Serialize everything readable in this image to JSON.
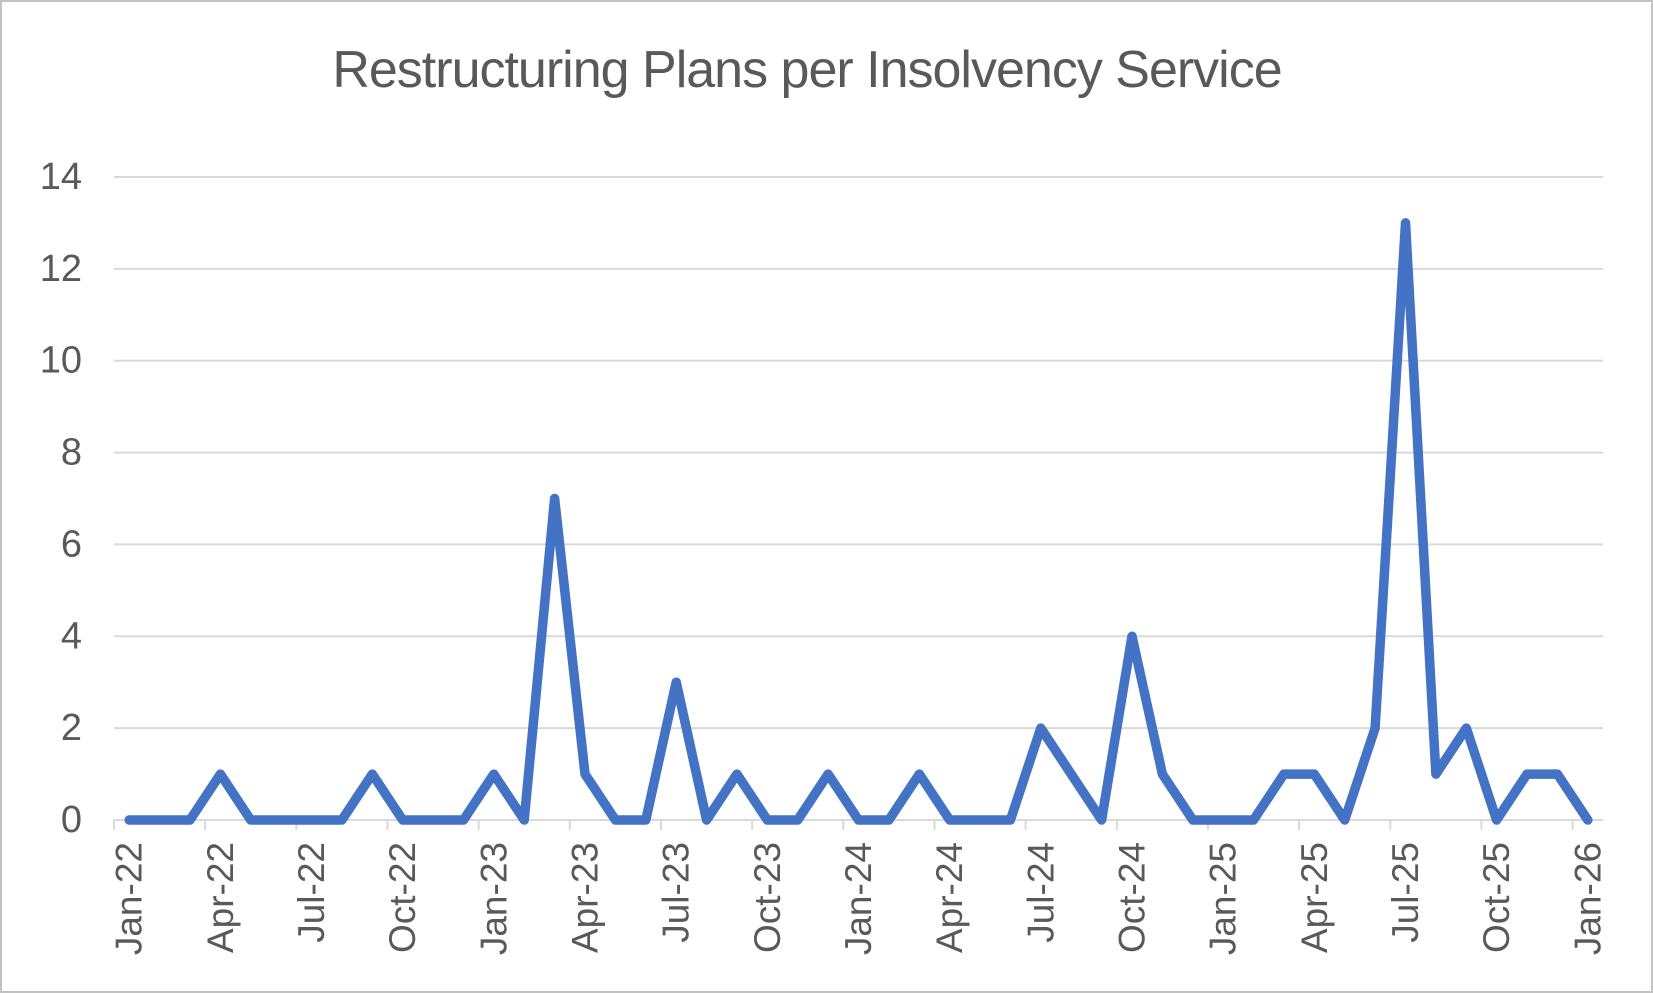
{
  "page": {
    "background_color": "#FFFFFF",
    "border_color": "#C2C2C2"
  },
  "chart_data": {
    "type": "line",
    "title": "Restructuring Plans per Insolvency Service",
    "xlabel": "",
    "ylabel": "",
    "categories": [
      "Jan-22",
      "Feb-22",
      "Mar-22",
      "Apr-22",
      "May-22",
      "Jun-22",
      "Jul-22",
      "Aug-22",
      "Sep-22",
      "Oct-22",
      "Nov-22",
      "Dec-22",
      "Jan-23",
      "Feb-23",
      "Mar-23",
      "Apr-23",
      "May-23",
      "Jun-23",
      "Jul-23",
      "Aug-23",
      "Sep-23",
      "Oct-23",
      "Nov-23",
      "Dec-23",
      "Jan-24",
      "Feb-24",
      "Mar-24",
      "Apr-24",
      "May-24",
      "Jun-24",
      "Jul-24",
      "Aug-24",
      "Sep-24",
      "Oct-24",
      "Nov-24",
      "Dec-24",
      "Jan-25",
      "Feb-25",
      "Mar-25",
      "Apr-25",
      "May-25",
      "Jun-25",
      "Jul-25",
      "Aug-25",
      "Sep-25",
      "Oct-25",
      "Nov-25",
      "Dec-25",
      "Jan-26"
    ],
    "values": [
      0,
      0,
      0,
      1,
      0,
      0,
      0,
      0,
      1,
      0,
      0,
      0,
      1,
      0,
      7,
      1,
      0,
      0,
      3,
      0,
      1,
      0,
      0,
      1,
      0,
      0,
      1,
      0,
      0,
      0,
      2,
      1,
      0,
      4,
      1,
      0,
      0,
      0,
      1,
      1,
      0,
      2,
      13,
      1,
      2,
      0,
      1,
      1,
      0
    ],
    "x_axis_tick_labels": [
      "Jan-22",
      "Apr-22",
      "Jul-22",
      "Oct-22",
      "Jan-23",
      "Apr-23",
      "Jul-23",
      "Oct-23",
      "Jan-24",
      "Apr-24",
      "Jul-24",
      "Oct-24",
      "Jan-25",
      "Apr-25",
      "Jul-25",
      "Oct-25",
      "Jan-26"
    ],
    "tick_label_interval": 3,
    "yticks": [
      0,
      2,
      4,
      6,
      8,
      10,
      12,
      14
    ],
    "ylim": [
      0,
      14
    ],
    "grid": true,
    "legend": "none",
    "series_name": "Restructuring Plans",
    "line_color": "#4472C4",
    "grid_color": "#D9D9D9",
    "text_color": "#595959"
  }
}
